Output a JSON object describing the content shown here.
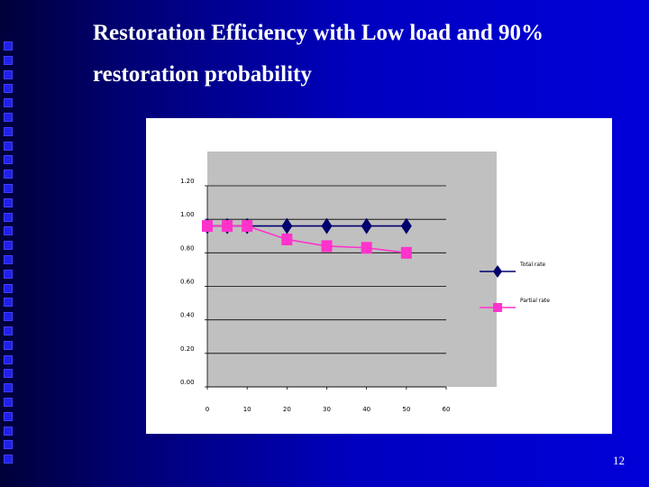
{
  "slide": {
    "title_line1": "Restoration Efficiency with Low load and 90%",
    "title_line2": "restoration probability",
    "page_number": "12",
    "bullet_square_count": 30,
    "colors": {
      "background": "#0000c4",
      "title": "#ffffff",
      "plot_area": "#c0c0c0"
    }
  },
  "chart_data": {
    "type": "line",
    "title": "",
    "xlabel": "",
    "ylabel": "",
    "xlim": [
      0,
      60
    ],
    "ylim": [
      0,
      1.2
    ],
    "x_ticks": [
      "0",
      "10",
      "20",
      "30",
      "40",
      "50",
      "60"
    ],
    "y_ticks": [
      "1.20",
      "1.00",
      "0.80",
      "0.60",
      "0.40",
      "0.20",
      "0.00"
    ],
    "grid": true,
    "legend_position": "right",
    "series": [
      {
        "name": "Total rate",
        "color": "#00006e",
        "marker": "diamond",
        "x": [
          0,
          5,
          10,
          20,
          30,
          40,
          50
        ],
        "y": [
          0.96,
          0.96,
          0.96,
          0.96,
          0.96,
          0.96,
          0.96
        ]
      },
      {
        "name": "Partial rate",
        "color": "#ff33cc",
        "marker": "square",
        "x": [
          0,
          5,
          10,
          20,
          30,
          40,
          50
        ],
        "y": [
          0.96,
          0.96,
          0.96,
          0.88,
          0.84,
          0.83,
          0.8
        ]
      }
    ]
  }
}
